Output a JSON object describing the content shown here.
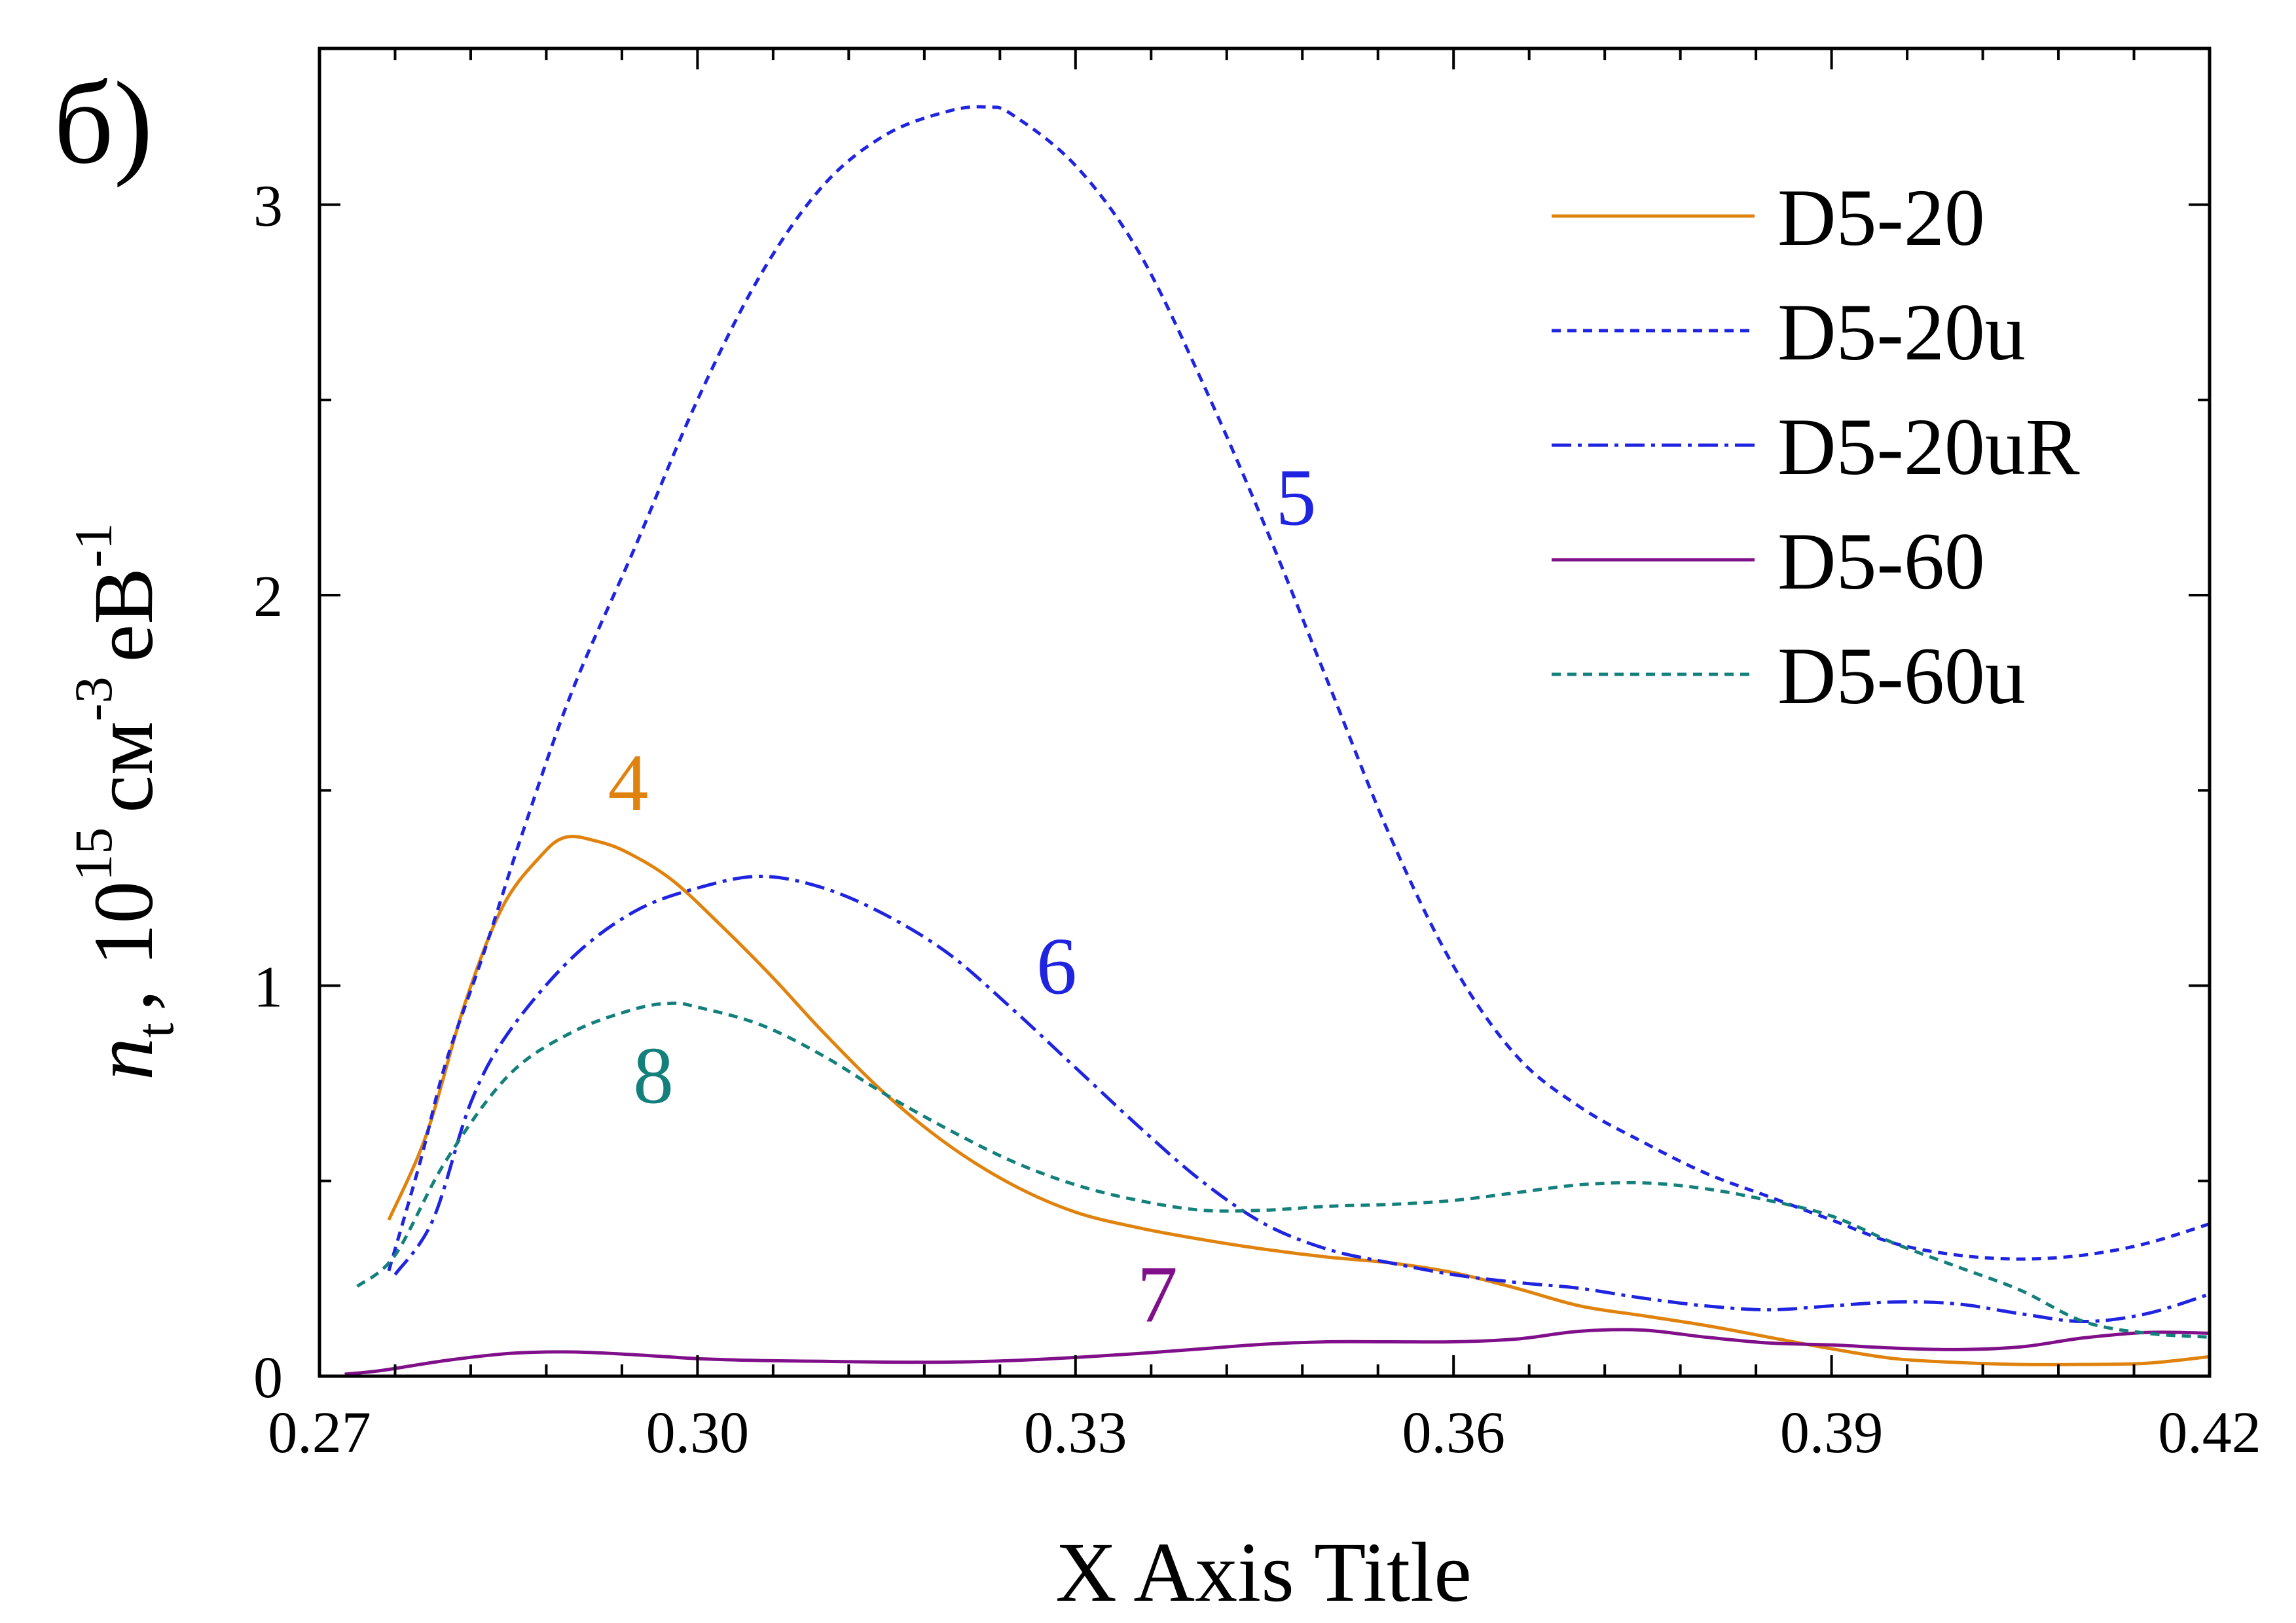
{
  "panel_label": "б)",
  "chart_data": {
    "type": "line",
    "title": "",
    "xlabel": "X Axis Title",
    "ylabel": {
      "n": "n",
      "sub": "t",
      "comma": ",",
      "coef": "10",
      "coef_exp": "15",
      "unit1": "см",
      "unit1_exp": "-3",
      "unit2": "eB",
      "unit2_exp": "-1"
    },
    "xlim": [
      0.27,
      0.42
    ],
    "ylim": [
      0,
      3.4
    ],
    "xticks": [
      0.27,
      0.3,
      0.33,
      0.36,
      0.39,
      0.42
    ],
    "xtick_labels": [
      "0.27",
      "0.30",
      "0.33",
      "0.36",
      "0.39",
      "0.42"
    ],
    "yticks": [
      0,
      1,
      2,
      3
    ],
    "ytick_labels": [
      "0",
      "1",
      "2",
      "3"
    ],
    "grid": false,
    "legend_position": "top-right",
    "series": [
      {
        "name": "D5-20",
        "curve_label": "4",
        "color": "#E0830E",
        "dash": "solid",
        "label_at": [
          0.2945,
          1.45
        ],
        "points": [
          [
            0.2755,
            0.4
          ],
          [
            0.2785,
            0.62
          ],
          [
            0.2815,
            0.95
          ],
          [
            0.2845,
            1.2
          ],
          [
            0.2875,
            1.33
          ],
          [
            0.2895,
            1.38
          ],
          [
            0.292,
            1.37
          ],
          [
            0.2945,
            1.34
          ],
          [
            0.298,
            1.27
          ],
          [
            0.302,
            1.15
          ],
          [
            0.306,
            1.02
          ],
          [
            0.31,
            0.88
          ],
          [
            0.315,
            0.72
          ],
          [
            0.32,
            0.59
          ],
          [
            0.325,
            0.49
          ],
          [
            0.33,
            0.42
          ],
          [
            0.335,
            0.38
          ],
          [
            0.34,
            0.35
          ],
          [
            0.345,
            0.325
          ],
          [
            0.35,
            0.305
          ],
          [
            0.355,
            0.29
          ],
          [
            0.36,
            0.265
          ],
          [
            0.365,
            0.225
          ],
          [
            0.37,
            0.18
          ],
          [
            0.375,
            0.155
          ],
          [
            0.38,
            0.13
          ],
          [
            0.385,
            0.1
          ],
          [
            0.39,
            0.07
          ],
          [
            0.395,
            0.045
          ],
          [
            0.4,
            0.035
          ],
          [
            0.405,
            0.03
          ],
          [
            0.41,
            0.03
          ],
          [
            0.415,
            0.033
          ],
          [
            0.42,
            0.05
          ]
        ]
      },
      {
        "name": "D5-20u",
        "curve_label": "5",
        "color": "#1F24E0",
        "dash": "dot",
        "label_at": [
          0.3475,
          2.18
        ],
        "points": [
          [
            0.2755,
            0.27
          ],
          [
            0.278,
            0.55
          ],
          [
            0.28,
            0.8
          ],
          [
            0.283,
            1.08
          ],
          [
            0.286,
            1.38
          ],
          [
            0.29,
            1.75
          ],
          [
            0.295,
            2.12
          ],
          [
            0.3,
            2.5
          ],
          [
            0.305,
            2.82
          ],
          [
            0.31,
            3.05
          ],
          [
            0.315,
            3.18
          ],
          [
            0.32,
            3.24
          ],
          [
            0.323,
            3.25
          ],
          [
            0.325,
            3.23
          ],
          [
            0.33,
            3.1
          ],
          [
            0.335,
            2.88
          ],
          [
            0.34,
            2.55
          ],
          [
            0.345,
            2.18
          ],
          [
            0.35,
            1.78
          ],
          [
            0.355,
            1.38
          ],
          [
            0.36,
            1.05
          ],
          [
            0.365,
            0.82
          ],
          [
            0.37,
            0.69
          ],
          [
            0.375,
            0.6
          ],
          [
            0.38,
            0.52
          ],
          [
            0.385,
            0.46
          ],
          [
            0.39,
            0.4
          ],
          [
            0.395,
            0.34
          ],
          [
            0.4,
            0.31
          ],
          [
            0.405,
            0.3
          ],
          [
            0.41,
            0.31
          ],
          [
            0.415,
            0.34
          ],
          [
            0.42,
            0.39
          ]
        ]
      },
      {
        "name": "D5-20uR",
        "curve_label": "6",
        "color": "#1F24E0",
        "dash": "dashdot",
        "label_at": [
          0.3285,
          0.98
        ],
        "points": [
          [
            0.276,
            0.26
          ],
          [
            0.279,
            0.4
          ],
          [
            0.282,
            0.7
          ],
          [
            0.285,
            0.88
          ],
          [
            0.29,
            1.07
          ],
          [
            0.295,
            1.19
          ],
          [
            0.3,
            1.25
          ],
          [
            0.305,
            1.28
          ],
          [
            0.31,
            1.25
          ],
          [
            0.315,
            1.18
          ],
          [
            0.32,
            1.08
          ],
          [
            0.325,
            0.94
          ],
          [
            0.33,
            0.79
          ],
          [
            0.335,
            0.64
          ],
          [
            0.34,
            0.5
          ],
          [
            0.345,
            0.39
          ],
          [
            0.35,
            0.325
          ],
          [
            0.355,
            0.29
          ],
          [
            0.36,
            0.26
          ],
          [
            0.365,
            0.24
          ],
          [
            0.37,
            0.225
          ],
          [
            0.375,
            0.2
          ],
          [
            0.38,
            0.18
          ],
          [
            0.385,
            0.17
          ],
          [
            0.39,
            0.18
          ],
          [
            0.395,
            0.19
          ],
          [
            0.4,
            0.185
          ],
          [
            0.405,
            0.16
          ],
          [
            0.41,
            0.14
          ],
          [
            0.415,
            0.16
          ],
          [
            0.42,
            0.21
          ]
        ]
      },
      {
        "name": "D5-60",
        "curve_label": "7",
        "color": "#800F8A",
        "dash": "solid",
        "label_at": [
          0.3365,
          0.14
        ],
        "points": [
          [
            0.272,
            0.005
          ],
          [
            0.275,
            0.015
          ],
          [
            0.28,
            0.04
          ],
          [
            0.285,
            0.058
          ],
          [
            0.29,
            0.062
          ],
          [
            0.295,
            0.055
          ],
          [
            0.3,
            0.045
          ],
          [
            0.305,
            0.04
          ],
          [
            0.31,
            0.038
          ],
          [
            0.315,
            0.036
          ],
          [
            0.32,
            0.036
          ],
          [
            0.325,
            0.04
          ],
          [
            0.33,
            0.048
          ],
          [
            0.335,
            0.058
          ],
          [
            0.34,
            0.07
          ],
          [
            0.345,
            0.082
          ],
          [
            0.35,
            0.088
          ],
          [
            0.355,
            0.088
          ],
          [
            0.36,
            0.088
          ],
          [
            0.365,
            0.095
          ],
          [
            0.37,
            0.115
          ],
          [
            0.375,
            0.118
          ],
          [
            0.38,
            0.1
          ],
          [
            0.385,
            0.085
          ],
          [
            0.39,
            0.08
          ],
          [
            0.395,
            0.072
          ],
          [
            0.4,
            0.068
          ],
          [
            0.405,
            0.075
          ],
          [
            0.41,
            0.098
          ],
          [
            0.415,
            0.112
          ],
          [
            0.42,
            0.11
          ]
        ]
      },
      {
        "name": "D5-60u",
        "curve_label": "8",
        "color": "#14807C",
        "dash": "dot",
        "label_at": [
          0.2965,
          0.7
        ],
        "points": [
          [
            0.273,
            0.23
          ],
          [
            0.276,
            0.31
          ],
          [
            0.28,
            0.55
          ],
          [
            0.285,
            0.77
          ],
          [
            0.29,
            0.88
          ],
          [
            0.295,
            0.94
          ],
          [
            0.298,
            0.955
          ],
          [
            0.3,
            0.945
          ],
          [
            0.305,
            0.9
          ],
          [
            0.31,
            0.82
          ],
          [
            0.315,
            0.72
          ],
          [
            0.32,
            0.63
          ],
          [
            0.325,
            0.55
          ],
          [
            0.33,
            0.49
          ],
          [
            0.335,
            0.45
          ],
          [
            0.34,
            0.425
          ],
          [
            0.345,
            0.425
          ],
          [
            0.35,
            0.435
          ],
          [
            0.355,
            0.44
          ],
          [
            0.36,
            0.45
          ],
          [
            0.365,
            0.47
          ],
          [
            0.37,
            0.49
          ],
          [
            0.375,
            0.495
          ],
          [
            0.38,
            0.48
          ],
          [
            0.385,
            0.45
          ],
          [
            0.39,
            0.41
          ],
          [
            0.395,
            0.34
          ],
          [
            0.4,
            0.28
          ],
          [
            0.405,
            0.22
          ],
          [
            0.41,
            0.14
          ],
          [
            0.415,
            0.11
          ],
          [
            0.42,
            0.1
          ]
        ]
      }
    ]
  }
}
